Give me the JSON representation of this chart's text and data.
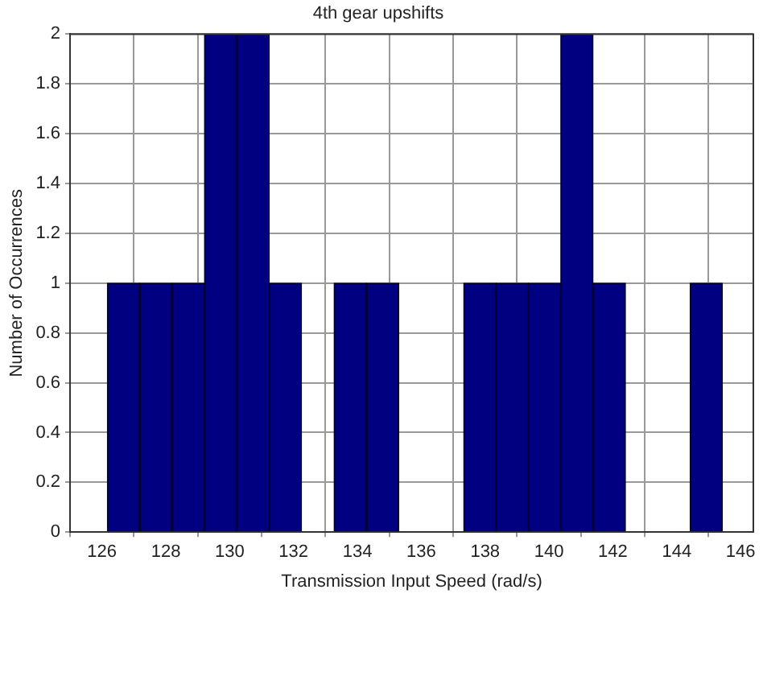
{
  "chart_data": {
    "type": "histogram",
    "title": "4th gear upshifts",
    "xlabel": "Transmission Input Speed (rad/s)",
    "ylabel": "Number of Occurrences",
    "bins": [
      126.17,
      127.18,
      128.2,
      129.21,
      130.22,
      131.24,
      132.25,
      133.27,
      134.28,
      135.3,
      136.31,
      137.33,
      138.34,
      139.35,
      140.37,
      141.38,
      142.4,
      143.41,
      144.42,
      145.43
    ],
    "values": [
      1,
      1,
      1,
      2,
      2,
      1,
      0,
      1,
      1,
      0,
      0,
      1,
      1,
      1,
      2,
      1,
      0,
      0,
      1
    ],
    "color": "#000080",
    "xlim": [
      125,
      146.4
    ],
    "xticks": [
      126,
      128,
      130,
      132,
      134,
      136,
      138,
      140,
      142,
      144,
      146
    ],
    "ylim": [
      0,
      2
    ],
    "yticks": [
      0,
      0.2,
      0.4,
      0.6,
      0.8,
      1,
      1.2,
      1.4,
      1.6,
      1.8,
      2
    ],
    "grid": true
  }
}
